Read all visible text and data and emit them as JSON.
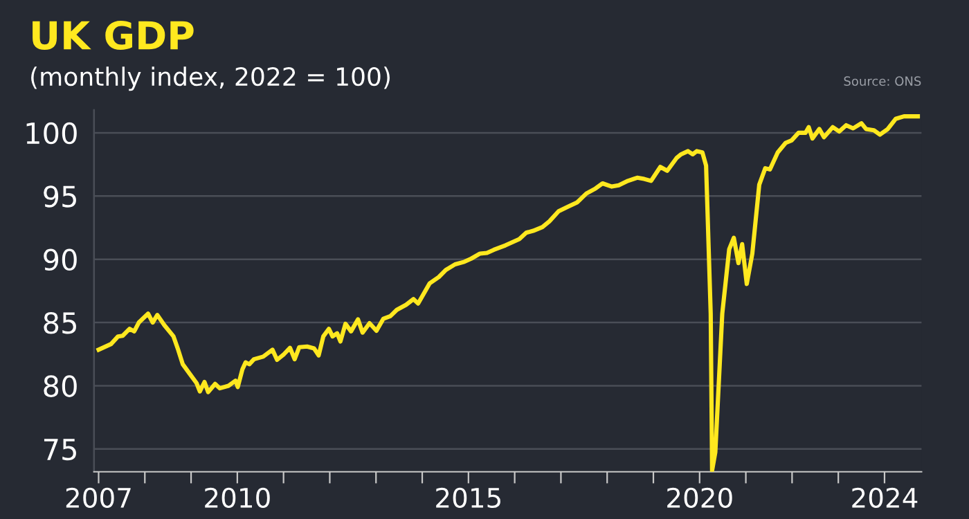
{
  "chart_data": {
    "type": "line",
    "title": "UK GDP",
    "subtitle": "(monthly index, 2022 = 100)",
    "annotations": [
      "Source: ONS"
    ],
    "x": [
      2007.0,
      2007.27,
      2007.42,
      2007.52,
      2007.67,
      2007.77,
      2007.87,
      2008.07,
      2008.17,
      2008.27,
      2008.42,
      2008.62,
      2008.72,
      2008.82,
      2008.97,
      2009.12,
      2009.19,
      2009.29,
      2009.37,
      2009.52,
      2009.62,
      2009.81,
      2009.96,
      2010.01,
      2010.11,
      2010.18,
      2010.26,
      2010.36,
      2010.56,
      2010.76,
      2010.86,
      2011.01,
      2011.14,
      2011.24,
      2011.34,
      2011.51,
      2011.66,
      2011.76,
      2011.86,
      2011.98,
      2012.06,
      2012.16,
      2012.23,
      2012.34,
      2012.46,
      2012.61,
      2012.71,
      2012.86,
      2013.01,
      2013.16,
      2013.31,
      2013.45,
      2013.65,
      2013.81,
      2013.91,
      2014.16,
      2014.36,
      2014.51,
      2014.71,
      2014.91,
      2015.06,
      2015.25,
      2015.4,
      2015.55,
      2015.8,
      2015.95,
      2016.1,
      2016.25,
      2016.4,
      2016.6,
      2016.75,
      2016.95,
      2017.15,
      2017.35,
      2017.55,
      2017.75,
      2017.9,
      2018.1,
      2018.25,
      2018.45,
      2018.65,
      2018.8,
      2018.95,
      2019.15,
      2019.3,
      2019.5,
      2019.6,
      2019.75,
      2019.85,
      2019.94,
      2020.06,
      2020.14,
      2020.24,
      2020.27,
      2020.34,
      2020.49,
      2020.64,
      2020.74,
      2020.84,
      2020.92,
      2021.02,
      2021.14,
      2021.29,
      2021.42,
      2021.52,
      2021.69,
      2021.86,
      2021.99,
      2022.14,
      2022.29,
      2022.36,
      2022.44,
      2022.59,
      2022.69,
      2022.88,
      2023.02,
      2023.17,
      2023.32,
      2023.5,
      2023.6,
      2023.77,
      2023.9,
      2024.07,
      2024.24,
      2024.42,
      2024.62,
      2024.72
    ],
    "values": [
      82.85,
      83.3,
      83.9,
      83.95,
      84.5,
      84.3,
      85.0,
      85.7,
      85.0,
      85.6,
      84.8,
      83.9,
      82.85,
      81.7,
      80.95,
      80.2,
      79.55,
      80.3,
      79.5,
      80.15,
      79.8,
      80.0,
      80.4,
      79.9,
      81.3,
      81.85,
      81.7,
      82.1,
      82.3,
      82.85,
      82.05,
      82.5,
      83.0,
      82.1,
      83.05,
      83.1,
      82.95,
      82.4,
      83.9,
      84.5,
      83.9,
      84.15,
      83.5,
      84.9,
      84.3,
      85.25,
      84.2,
      84.95,
      84.35,
      85.3,
      85.5,
      86.0,
      86.4,
      86.85,
      86.5,
      88.1,
      88.6,
      89.15,
      89.6,
      89.8,
      90.05,
      90.45,
      90.5,
      90.75,
      91.1,
      91.35,
      91.6,
      92.1,
      92.25,
      92.55,
      93.0,
      93.8,
      94.15,
      94.5,
      95.2,
      95.6,
      96.0,
      95.75,
      95.85,
      96.2,
      96.45,
      96.35,
      96.2,
      97.3,
      97.0,
      98.0,
      98.3,
      98.55,
      98.3,
      98.55,
      98.45,
      97.4,
      85.7,
      73.3,
      74.75,
      85.7,
      90.8,
      91.7,
      89.7,
      91.2,
      88.05,
      90.45,
      95.9,
      97.2,
      97.1,
      98.45,
      99.2,
      99.4,
      100.0,
      100.0,
      100.45,
      99.55,
      100.3,
      99.65,
      100.45,
      100.1,
      100.6,
      100.35,
      100.75,
      100.3,
      100.2,
      99.85,
      100.3,
      101.1,
      101.3,
      101.3,
      101.3
    ],
    "color": "#ffe81f",
    "xlim": [
      2006.9,
      2024.8
    ],
    "xticks": [
      2007,
      {
        "value": 2008,
        "label": null
      },
      {
        "value": 2009,
        "label": null
      },
      2010,
      {
        "value": 2011,
        "label": null
      },
      {
        "value": 2012,
        "label": null
      },
      {
        "value": 2013,
        "label": null
      },
      {
        "value": 2014,
        "label": null
      },
      2015,
      {
        "value": 2016,
        "label": null
      },
      {
        "value": 2017,
        "label": null
      },
      {
        "value": 2018,
        "label": null
      },
      {
        "value": 2019,
        "label": null
      },
      2020,
      {
        "value": 2021,
        "label": null
      },
      {
        "value": 2022,
        "label": null
      },
      {
        "value": 2023,
        "label": null
      },
      2024
    ],
    "ylim": [
      73.2,
      101.8
    ],
    "yticks": [
      75,
      80,
      85,
      90,
      95,
      100
    ],
    "grid": "y",
    "marker": "none",
    "line_style": "solid"
  }
}
